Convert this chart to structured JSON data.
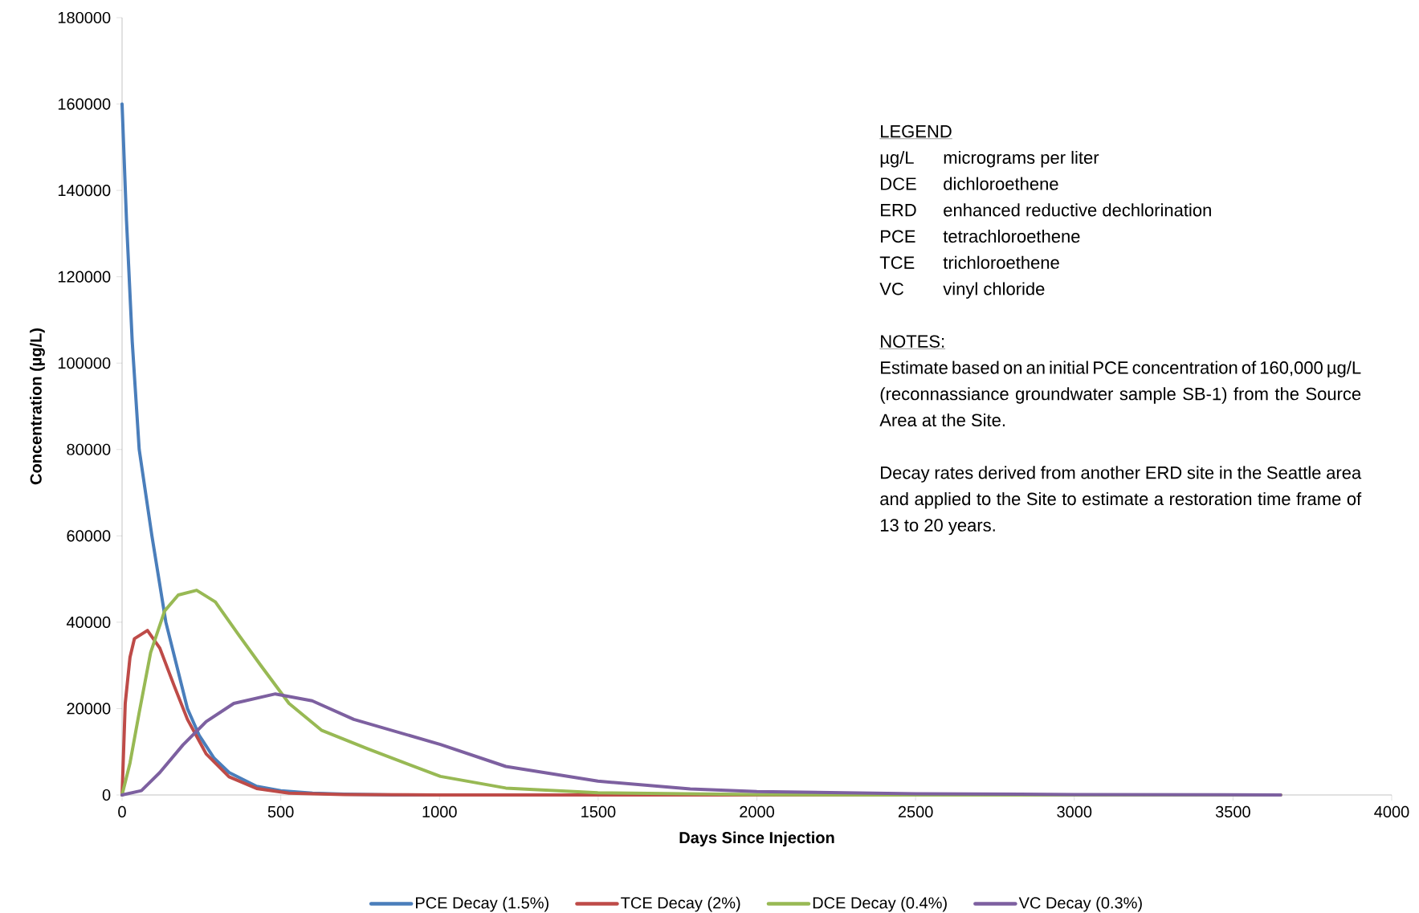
{
  "chart_data": {
    "type": "line",
    "xlabel": "Days Since Injection",
    "ylabel": "Concentration (µg/L)",
    "xlim": [
      0,
      4000
    ],
    "ylim": [
      0,
      180000
    ],
    "xticks": [
      0,
      500,
      1000,
      1500,
      2000,
      2500,
      3000,
      3500,
      4000
    ],
    "yticks": [
      0,
      20000,
      40000,
      60000,
      80000,
      100000,
      120000,
      140000,
      160000,
      180000
    ],
    "legend": "bottom",
    "series": [
      {
        "name": "PCE Decay (1.5%)",
        "color": "#4a7ebb",
        "x": [
          0,
          14,
          32,
          54,
          94,
          138,
          206,
          243,
          290,
          337,
          424,
          500,
          600,
          700,
          850,
          1000
        ],
        "values": [
          160000,
          133000,
          105000,
          80000,
          60000,
          40000,
          20000,
          13800,
          8500,
          5200,
          2000,
          1000,
          400,
          200,
          0,
          0
        ]
      },
      {
        "name": "TCE Decay (2%)",
        "color": "#be4b48",
        "x": [
          0,
          10,
          25,
          39,
          80,
          119,
          163,
          206,
          265,
          337,
          424,
          526,
          700,
          1000,
          1500,
          2500,
          3650
        ],
        "values": [
          0,
          21200,
          31900,
          36200,
          38100,
          34000,
          25500,
          17500,
          9500,
          4200,
          1500,
          400,
          100,
          0,
          0,
          0,
          0
        ]
      },
      {
        "name": "DCE Decay (0.4%)",
        "color": "#98b954",
        "x": [
          0,
          25,
          54,
          90,
          134,
          177,
          235,
          294,
          366,
          439,
          526,
          628,
          773,
          1003,
          1209,
          1499,
          2000,
          2500,
          3650
        ],
        "values": [
          0,
          7400,
          19100,
          33000,
          42600,
          46300,
          47400,
          44700,
          37200,
          29800,
          21200,
          15000,
          10700,
          4300,
          1600,
          500,
          100,
          0,
          0
        ]
      },
      {
        "name": "VC Decay (0.3%)",
        "color": "#7d60a0",
        "x": [
          0,
          61,
          119,
          192,
          265,
          352,
          483,
          599,
          730,
          1003,
          1209,
          1499,
          1790,
          2000,
          2500,
          3000,
          3650
        ],
        "values": [
          0,
          1000,
          5200,
          11600,
          17000,
          21200,
          23400,
          21800,
          17500,
          11700,
          6600,
          3200,
          1400,
          800,
          300,
          100,
          0
        ]
      }
    ],
    "annotations": [
      "LEGEND",
      "µg/L",
      "micrograms per liter",
      "DCE",
      "dichloroethene",
      "ERD",
      "enhanced reductive dechlorination",
      "PCE",
      "tetrachloroethene",
      "TCE",
      "trichloroethene",
      "VC",
      "vinyl chloride",
      "NOTES:",
      "Estimate based on an initial PCE concentration of 160,000 µg/L (reconnassiance groundwater sample SB-1) from the Source Area at the Site.",
      "Decay rates derived from another ERD site in the Seattle area and applied to the Site to estimate a restoration time frame of 13 to 20 years."
    ]
  }
}
